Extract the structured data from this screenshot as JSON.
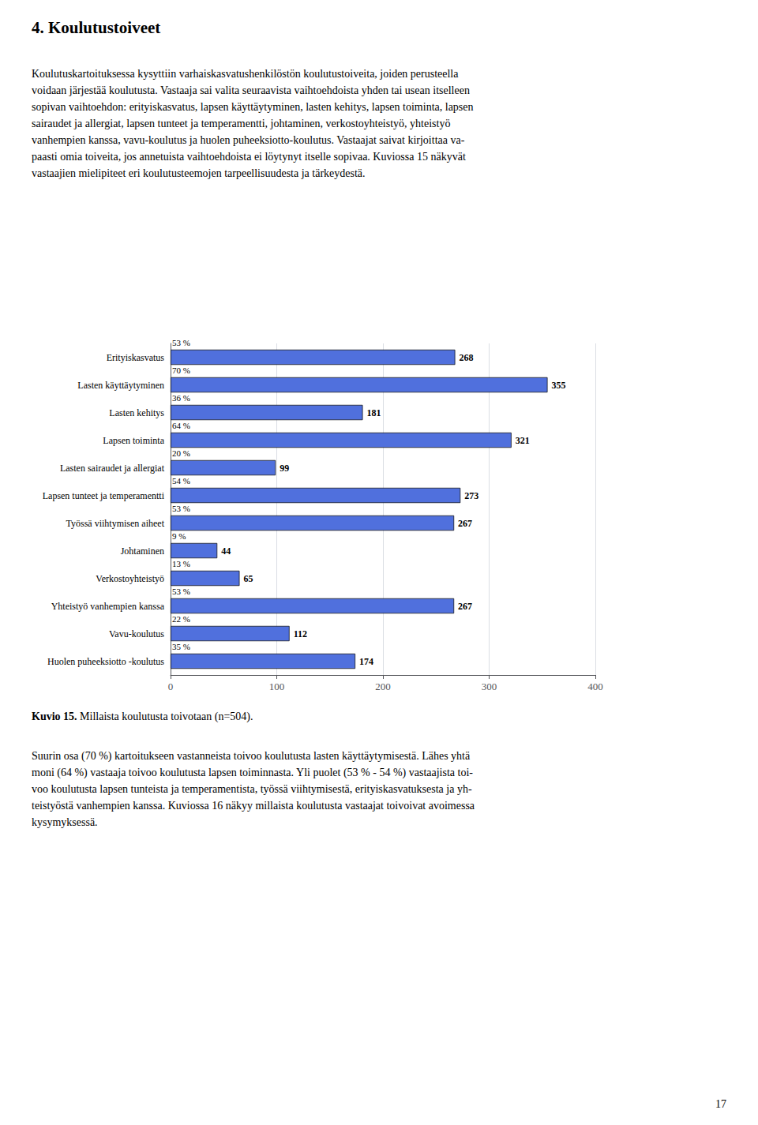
{
  "chart_data": {
    "type": "bar",
    "orientation": "horizontal",
    "title": "4. Koulutustoiveet",
    "categories": [
      "Erityiskasvatus",
      "Lasten käyttäytyminen",
      "Lasten kehitys",
      "Lapsen toiminta",
      "Lasten sairaudet ja allergiat",
      "Lapsen tunteet ja temperamentti",
      "Työssä viihtymisen aiheet",
      "Johtaminen",
      "Verkostoyhteistyö",
      "Yhteistyö vanhempien kanssa",
      "Vavu-koulutus",
      "Huolen puheeksiotto -koulutus"
    ],
    "values": [
      268,
      355,
      181,
      321,
      99,
      273,
      267,
      44,
      65,
      267,
      112,
      174
    ],
    "percent_labels": [
      "53 %",
      "70 %",
      "36 %",
      "64 %",
      "20 %",
      "54 %",
      "53 %",
      "9 %",
      "13 %",
      "53 %",
      "22 %",
      "35 %"
    ],
    "xlim": [
      0,
      400
    ],
    "xticks": [
      0,
      100,
      200,
      300,
      400
    ],
    "grid": true,
    "data_labels": true
  },
  "body_lines": [
    "Koulutuskartoituksessa kysyttiin varhaiskasvatushenkilöstön koulutustoiveita, joiden perusteella",
    "voidaan järjestää koulutusta. Vastaaja sai valita seuraavista vaihtoehdoista yhden tai usean itselleen",
    "sopivan vaihtoehdon: erityiskasvatus, lapsen käyttäytyminen, lasten kehitys, lapsen toiminta, lapsen",
    "sairaudet ja allergiat, lapsen tunteet ja temperamentti, johtaminen, verkostoyhteistyö, yhteistyö",
    "vanhempien kanssa, vavu-koulutus ja huolen puheeksiotto-koulutus. Vastaajat saivat kirjoittaa va-",
    "paasti omia toiveita, jos annetuista vaihtoehdoista ei löytynyt itselle sopivaa. Kuviossa 15 näkyvät",
    "vastaajien mielipiteet eri koulutusteemojen tarpeellisuudesta ja tärkeydestä."
  ],
  "caption": [
    "Kuvio 15.",
    "Millaista koulutusta toivotaan (n=504)."
  ],
  "footer_lines": [
    "Suurin osa (70 %) kartoitukseen vastanneista toivoo koulutusta lasten käyttäytymisestä. Lähes yhtä",
    "moni (64 %) vastaaja toivoo koulutusta lapsen toiminnasta. Yli puolet (53 % - 54 %) vastaajista toi-",
    "voo koulutusta lapsen tunteista ja temperamentista, työssä viihtymisestä, erityiskasvatuksesta ja yh-",
    "teistyöstä vanhempien kanssa. Kuviossa 16 näkyy millaista koulutusta vastaajat toivoivat avoimessa",
    "kysymyksessä."
  ],
  "page_number": "17"
}
